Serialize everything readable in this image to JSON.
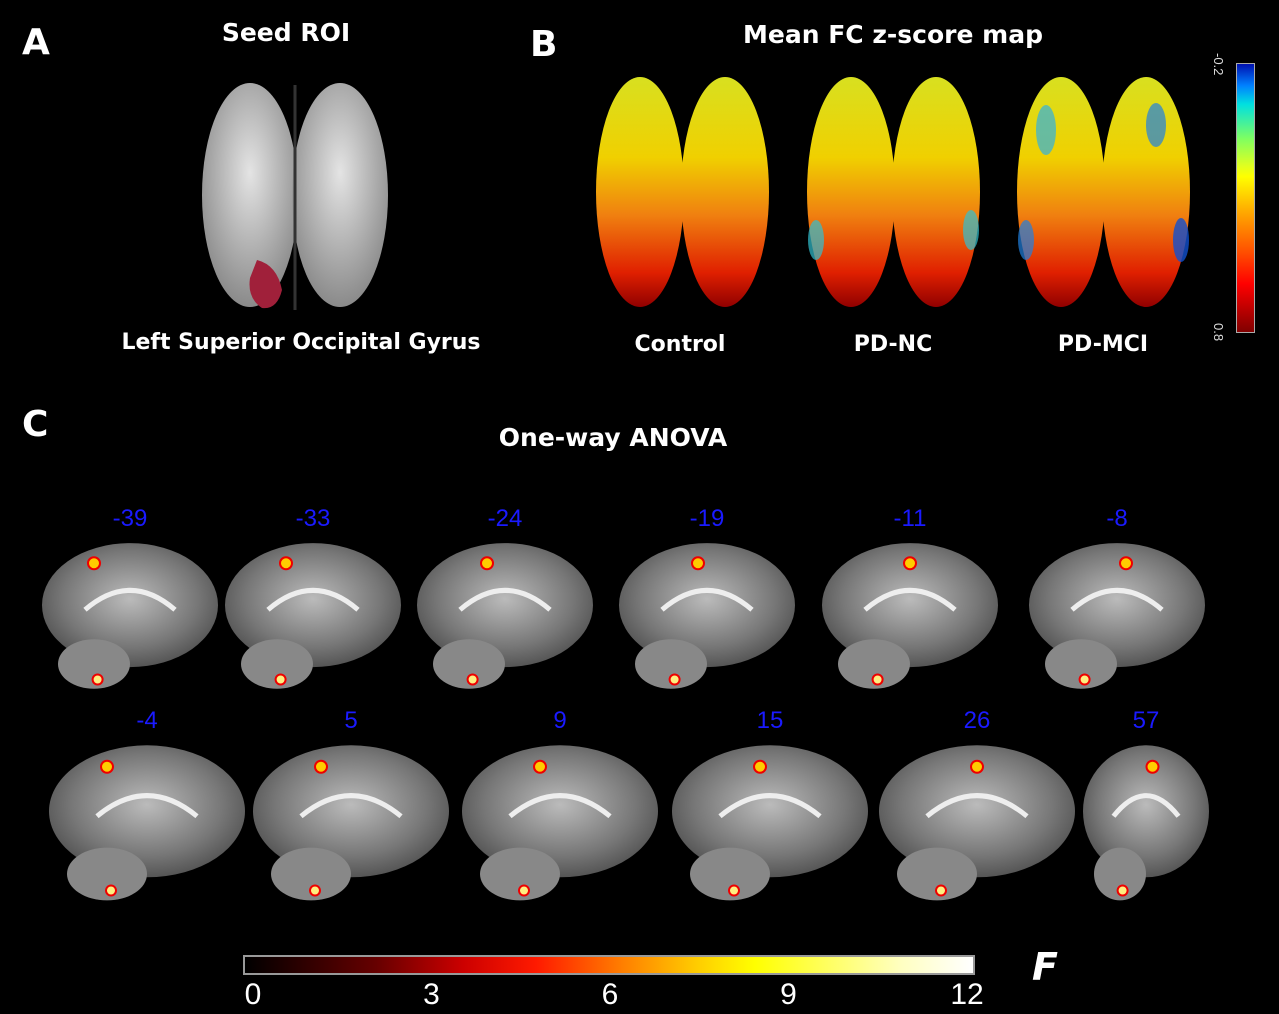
{
  "panel_a": {
    "letter": "A",
    "title": "Seed ROI",
    "label": "Left Superior Occipital Gyrus"
  },
  "panel_b": {
    "letter": "B",
    "title": "Mean FC z-score map",
    "groups": [
      "Control",
      "PD-NC",
      "PD-MCI"
    ],
    "colorbar": {
      "min": "0.8",
      "max": "-0.2",
      "colormap": "jet (blue = -0.2, red = 0.8)"
    }
  },
  "panel_c": {
    "letter": "C",
    "title": "One-way ANOVA",
    "slices_row1": [
      "-39",
      "-33",
      "-24",
      "-19",
      "-11",
      "-8"
    ],
    "slices_row2": [
      "-4",
      "5",
      "9",
      "15",
      "26",
      "57"
    ],
    "colorbar": {
      "label": "F",
      "ticks": [
        "0",
        "3",
        "6",
        "9",
        "12"
      ],
      "colormap": "hot (black-red-yellow-white)"
    }
  },
  "colors": {
    "background": "#000000",
    "slice_label": "#1a1aff",
    "roi": "#a0203a"
  }
}
